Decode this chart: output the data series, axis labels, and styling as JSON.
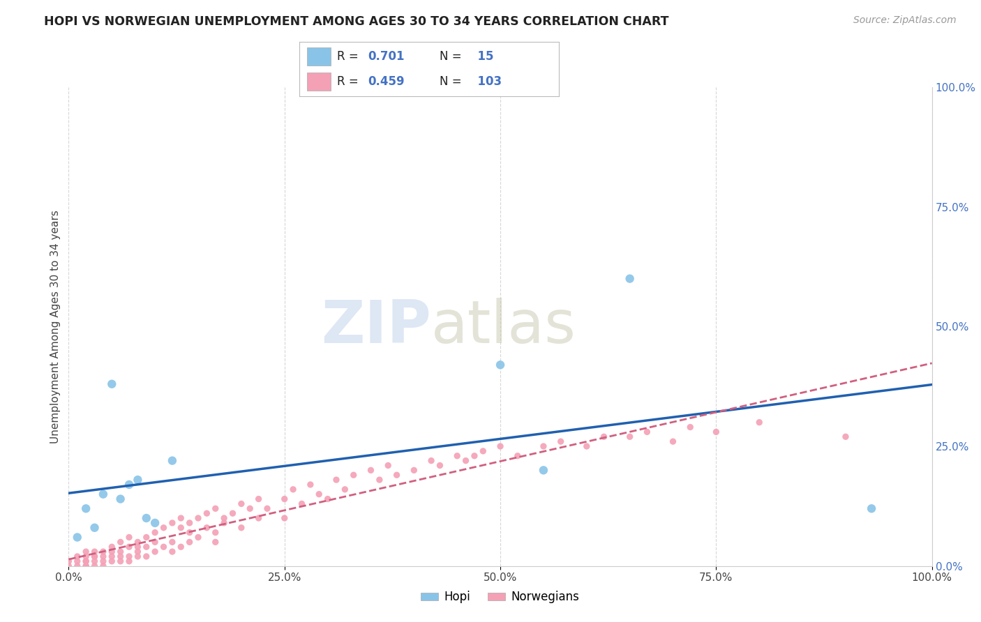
{
  "title": "HOPI VS NORWEGIAN UNEMPLOYMENT AMONG AGES 30 TO 34 YEARS CORRELATION CHART",
  "source": "Source: ZipAtlas.com",
  "ylabel": "Unemployment Among Ages 30 to 34 years",
  "xticklabels": [
    "0.0%",
    "25.0%",
    "50.0%",
    "75.0%",
    "100.0%"
  ],
  "xticks": [
    0,
    0.25,
    0.5,
    0.75,
    1.0
  ],
  "yticklabels_right": [
    "100.0%",
    "75.0%",
    "50.0%",
    "25.0%",
    "0.0%"
  ],
  "yticks_right": [
    1.0,
    0.75,
    0.5,
    0.25,
    0.0
  ],
  "hopi_color": "#89c4e8",
  "norwegian_color": "#f4a0b5",
  "hopi_R": 0.701,
  "hopi_N": 15,
  "norwegian_R": 0.459,
  "norwegian_N": 103,
  "hopi_line_color": "#2060b0",
  "norwegian_line_color": "#d06080",
  "legend_label_hopi": "Hopi",
  "legend_label_norwegian": "Norwegians",
  "watermark_zip": "ZIP",
  "watermark_atlas": "atlas",
  "background_color": "#ffffff",
  "hopi_x": [
    0.01,
    0.02,
    0.03,
    0.04,
    0.05,
    0.06,
    0.07,
    0.08,
    0.09,
    0.1,
    0.12,
    0.5,
    0.55,
    0.65,
    0.93
  ],
  "hopi_y": [
    0.06,
    0.12,
    0.08,
    0.15,
    0.38,
    0.14,
    0.17,
    0.18,
    0.1,
    0.09,
    0.22,
    0.42,
    0.2,
    0.6,
    0.12
  ],
  "norwegian_x": [
    0.0,
    0.0,
    0.01,
    0.01,
    0.01,
    0.02,
    0.02,
    0.02,
    0.02,
    0.02,
    0.02,
    0.03,
    0.03,
    0.03,
    0.03,
    0.03,
    0.04,
    0.04,
    0.04,
    0.04,
    0.05,
    0.05,
    0.05,
    0.05,
    0.06,
    0.06,
    0.06,
    0.06,
    0.07,
    0.07,
    0.07,
    0.07,
    0.08,
    0.08,
    0.08,
    0.08,
    0.09,
    0.09,
    0.09,
    0.1,
    0.1,
    0.1,
    0.11,
    0.11,
    0.12,
    0.12,
    0.12,
    0.13,
    0.13,
    0.13,
    0.14,
    0.14,
    0.14,
    0.15,
    0.15,
    0.16,
    0.16,
    0.17,
    0.17,
    0.17,
    0.18,
    0.18,
    0.19,
    0.2,
    0.2,
    0.21,
    0.22,
    0.22,
    0.23,
    0.25,
    0.25,
    0.26,
    0.27,
    0.28,
    0.29,
    0.3,
    0.31,
    0.32,
    0.33,
    0.35,
    0.36,
    0.37,
    0.38,
    0.4,
    0.42,
    0.43,
    0.45,
    0.46,
    0.47,
    0.48,
    0.5,
    0.52,
    0.55,
    0.57,
    0.6,
    0.62,
    0.65,
    0.67,
    0.7,
    0.72,
    0.75,
    0.8,
    0.9
  ],
  "norwegian_y": [
    0.01,
    0.0,
    0.02,
    0.0,
    0.01,
    0.01,
    0.03,
    0.0,
    0.02,
    0.01,
    0.0,
    0.02,
    0.0,
    0.01,
    0.03,
    0.02,
    0.03,
    0.01,
    0.02,
    0.0,
    0.04,
    0.02,
    0.01,
    0.03,
    0.05,
    0.01,
    0.03,
    0.02,
    0.04,
    0.02,
    0.01,
    0.06,
    0.05,
    0.03,
    0.02,
    0.04,
    0.06,
    0.04,
    0.02,
    0.07,
    0.03,
    0.05,
    0.08,
    0.04,
    0.09,
    0.05,
    0.03,
    0.08,
    0.04,
    0.1,
    0.07,
    0.05,
    0.09,
    0.06,
    0.1,
    0.08,
    0.11,
    0.07,
    0.05,
    0.12,
    0.09,
    0.1,
    0.11,
    0.13,
    0.08,
    0.12,
    0.14,
    0.1,
    0.12,
    0.14,
    0.1,
    0.16,
    0.13,
    0.17,
    0.15,
    0.14,
    0.18,
    0.16,
    0.19,
    0.2,
    0.18,
    0.21,
    0.19,
    0.2,
    0.22,
    0.21,
    0.23,
    0.22,
    0.23,
    0.24,
    0.25,
    0.23,
    0.25,
    0.26,
    0.25,
    0.27,
    0.27,
    0.28,
    0.26,
    0.29,
    0.28,
    0.3,
    0.27
  ]
}
